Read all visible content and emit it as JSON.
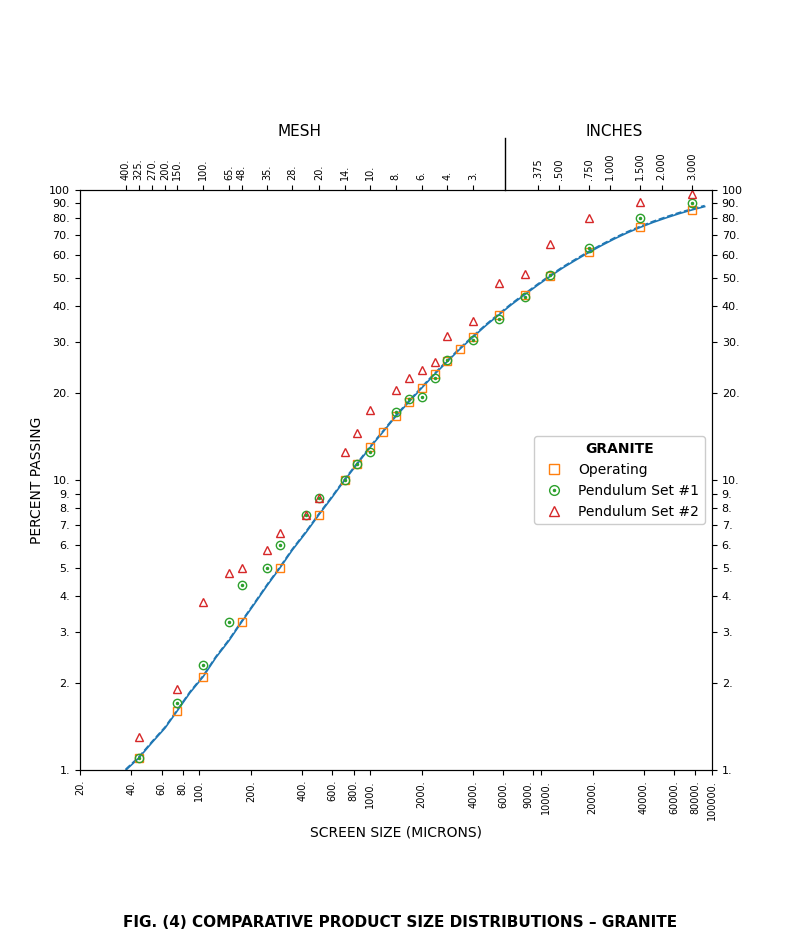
{
  "chart_data": {
    "type": "scatter",
    "title": "FIG. (4) COMPARATIVE PRODUCT SIZE DISTRIBUTIONS – GRANITE",
    "xlabel": "SCREEN SIZE (MICRONS)",
    "ylabel": "PERCENT PASSING",
    "log": true,
    "grid": false,
    "legend": "center right",
    "legend_title": "GRANITE",
    "xlim": [
      20,
      100000
    ],
    "ylim": [
      1,
      100
    ],
    "xticks": [
      {
        "value": 20,
        "label": "20."
      },
      {
        "value": 40,
        "label": "40."
      },
      {
        "value": 60,
        "label": "60."
      },
      {
        "value": 80,
        "label": "80."
      },
      {
        "value": 100,
        "label": "100."
      },
      {
        "value": 200,
        "label": "200."
      },
      {
        "value": 400,
        "label": "400."
      },
      {
        "value": 600,
        "label": "600."
      },
      {
        "value": 800,
        "label": "800."
      },
      {
        "value": 1000,
        "label": "1000."
      },
      {
        "value": 2000,
        "label": "2000."
      },
      {
        "value": 4000,
        "label": "4000."
      },
      {
        "value": 6000,
        "label": "6000."
      },
      {
        "value": 9000,
        "label": "9000."
      },
      {
        "value": 10000,
        "label": "10000."
      },
      {
        "value": 20000,
        "label": "20000."
      },
      {
        "value": 40000,
        "label": "40000."
      },
      {
        "value": 60000,
        "label": "60000."
      },
      {
        "value": 80000,
        "label": "80000."
      },
      {
        "value": 100000,
        "label": "100000."
      }
    ],
    "yticks": [
      {
        "value": 1,
        "label": "1."
      },
      {
        "value": 2,
        "label": "2."
      },
      {
        "value": 3,
        "label": "3."
      },
      {
        "value": 4,
        "label": "4."
      },
      {
        "value": 5,
        "label": "5."
      },
      {
        "value": 6,
        "label": "6."
      },
      {
        "value": 7,
        "label": "7."
      },
      {
        "value": 8,
        "label": "8."
      },
      {
        "value": 9,
        "label": "9."
      },
      {
        "value": 10,
        "label": "10."
      },
      {
        "value": 20,
        "label": "20."
      },
      {
        "value": 30,
        "label": "30."
      },
      {
        "value": 40,
        "label": "40."
      },
      {
        "value": 50,
        "label": "50."
      },
      {
        "value": 60,
        "label": "60."
      },
      {
        "value": 70,
        "label": "70."
      },
      {
        "value": 80,
        "label": "80."
      },
      {
        "value": 90,
        "label": "90."
      },
      100
    ],
    "x2lim": [
      20,
      100000
    ],
    "x2_tick_groups": [
      {
        "label": "MESH",
        "ticks": [
          {
            "value": 37,
            "label": "400."
          },
          {
            "value": 44,
            "label": "325."
          },
          {
            "value": 53,
            "label": "270."
          },
          {
            "value": 63,
            "label": "200."
          },
          {
            "value": 74,
            "label": "150."
          },
          {
            "value": 105,
            "label": "100."
          },
          {
            "value": 149,
            "label": "65."
          },
          {
            "value": 177,
            "label": "48."
          },
          {
            "value": 250,
            "label": "35."
          },
          {
            "value": 350,
            "label": "28."
          },
          {
            "value": 500,
            "label": "20."
          },
          {
            "value": 707,
            "label": "14."
          },
          {
            "value": 1000,
            "label": "10."
          },
          {
            "value": 1410,
            "label": "8."
          },
          {
            "value": 2000,
            "label": "6."
          },
          {
            "value": 2830,
            "label": "4."
          },
          {
            "value": 4000,
            "label": "3."
          }
        ]
      },
      {
        "label": "INCHES",
        "ticks": [
          {
            "value": 9525,
            "label": ".375"
          },
          {
            "value": 12700,
            "label": ".500"
          },
          {
            "value": 19050,
            "label": ".750"
          },
          {
            "value": 25400,
            "label": "1.000"
          },
          {
            "value": 38100,
            "label": "1.500"
          },
          {
            "value": 50800,
            "label": "2.000"
          },
          {
            "value": 76200,
            "label": "3.000"
          }
        ]
      }
    ],
    "series": [
      {
        "type": "line",
        "line_style": "solid",
        "x": [
          37,
          44,
          53,
          63,
          74,
          88,
          105,
          125,
          149,
          177,
          210,
          250,
          297,
          350,
          420,
          500,
          595,
          707,
          841,
          1000,
          1190,
          1410,
          1680,
          2000,
          2380,
          2830,
          3360,
          4000,
          4760,
          5660,
          6730,
          8000,
          9510,
          11300,
          13400,
          16000,
          19000,
          22600,
          26900,
          31900,
          38100,
          45300,
          53900,
          64100,
          76200,
          90600
        ],
        "values": [
          1.0,
          1.1,
          1.25,
          1.4,
          1.6,
          1.85,
          2.1,
          2.45,
          2.8,
          3.25,
          3.75,
          4.35,
          5.0,
          5.75,
          6.6,
          7.6,
          8.7,
          10.0,
          11.4,
          13.0,
          14.7,
          16.6,
          18.6,
          20.8,
          23.2,
          25.7,
          28.4,
          31.2,
          34.2,
          37.2,
          40.4,
          43.6,
          47.0,
          50.5,
          54.0,
          57.5,
          61.0,
          64.5,
          68.0,
          71.3,
          74.5,
          77.5,
          80.3,
          83.0,
          85.5,
          87.8
        ]
      },
      {
        "type": "line",
        "line_style": "dashed",
        "x": [
          37,
          44,
          53,
          63,
          74,
          88,
          105,
          125,
          149,
          177,
          210,
          250,
          297,
          350,
          420,
          500,
          595,
          707,
          841,
          1000,
          1190,
          1410,
          1680,
          2000,
          2380,
          2830,
          3360,
          4000,
          4760,
          5660,
          6730,
          8000,
          9510,
          11300,
          13400,
          16000,
          19000,
          22600,
          26900,
          31900,
          38100,
          45300,
          53900,
          64100,
          76200,
          90600
        ],
        "values": [
          1.008,
          1.1088,
          1.26,
          1.4112,
          1.6128,
          1.8648,
          2.1168,
          2.4696,
          2.8224,
          3.276,
          3.78,
          4.3848,
          5.04,
          5.796,
          6.6528,
          7.6608,
          8.7696,
          10.08,
          11.4912,
          13.104,
          14.8176,
          16.7328,
          18.7488,
          20.9664,
          23.3856,
          25.9056,
          28.6272,
          31.4496,
          34.4736,
          37.4976,
          40.7232,
          43.9488,
          47.376,
          50.904,
          54.432,
          57.96,
          61.488,
          65.016,
          68.544,
          71.8704,
          75.096,
          78.12,
          80.9424,
          83.664,
          86.184,
          88.5024
        ]
      },
      {
        "name": "Operating",
        "type": "scatter",
        "marker": "square",
        "x": [
          44,
          74,
          105,
          177,
          297,
          500,
          707,
          841,
          1000,
          1190,
          1410,
          1680,
          2000,
          2380,
          2830,
          3360,
          4000,
          5660,
          8000,
          11300,
          19000,
          38100,
          76200
        ],
        "values": [
          1.1,
          1.6,
          2.1,
          3.25,
          5.0,
          7.6,
          10.0,
          11.4,
          13.0,
          14.7,
          16.6,
          18.6,
          20.8,
          23.2,
          25.7,
          28.4,
          31.2,
          37.2,
          43.6,
          50.5,
          61.0,
          74.5,
          85.5
        ]
      },
      {
        "name": "Pendulum Set #1",
        "type": "scatter",
        "marker": "circle_dot",
        "x": [
          44,
          74,
          105,
          149,
          177,
          250,
          297,
          420,
          500,
          707,
          841,
          1000,
          1410,
          1680,
          2000,
          2380,
          2830,
          4000,
          5660,
          8000,
          11300,
          19000,
          38100,
          76200
        ],
        "values": [
          1.1,
          1.7,
          2.3,
          3.25,
          4.35,
          5.0,
          6.0,
          7.6,
          8.7,
          10.0,
          11.4,
          12.5,
          17.2,
          19.0,
          19.4,
          22.5,
          26.0,
          30.5,
          36.0,
          43.0,
          51.0,
          63.0,
          80.0,
          90.5
        ]
      },
      {
        "name": "Pendulum Set #2",
        "type": "scatter",
        "marker": "triangle",
        "x": [
          44,
          74,
          105,
          149,
          177,
          250,
          297,
          420,
          500,
          707,
          841,
          1000,
          1410,
          1680,
          2000,
          2380,
          2830,
          4000,
          5660,
          8000,
          11300,
          19000,
          38100,
          76200
        ],
        "values": [
          1.3,
          1.9,
          3.8,
          4.8,
          5.0,
          5.75,
          6.6,
          7.6,
          8.7,
          12.5,
          14.5,
          17.5,
          20.5,
          22.5,
          24.0,
          25.5,
          31.5,
          35.5,
          48.0,
          51.5,
          65.0,
          80.0,
          91.0,
          97.0
        ]
      }
    ]
  }
}
